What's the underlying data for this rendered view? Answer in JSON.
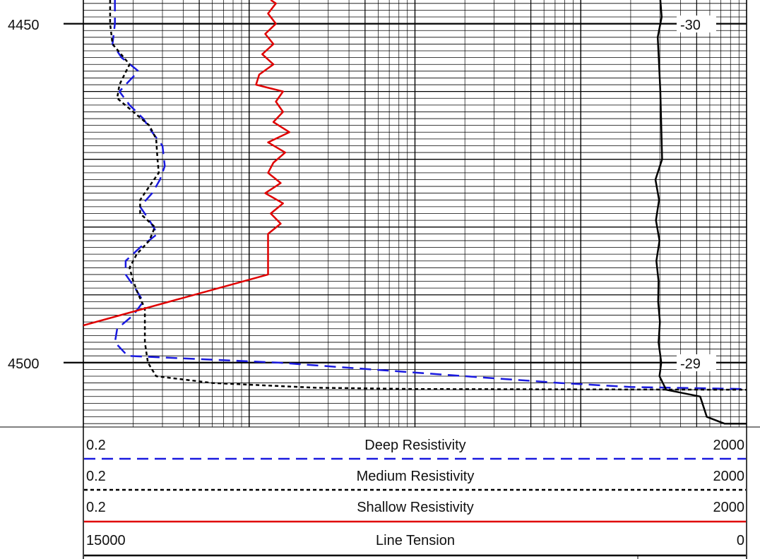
{
  "chart_data": {
    "type": "line",
    "title": "",
    "depth_axis": {
      "labels": [
        "4450",
        "4500"
      ],
      "range_visible": [
        4446.5,
        4509.5
      ]
    },
    "grid": {
      "x_scale": "log",
      "decades": 4
    },
    "tension_marks": [
      "-30",
      "-29"
    ],
    "series": [
      {
        "name": "Deep Resistivity",
        "scale": {
          "left": "0.2",
          "right": "2000",
          "log": true
        },
        "color": "#1a1adf",
        "style": "long-dash",
        "points": [
          [
            0.31,
            4446.5
          ],
          [
            0.31,
            4450
          ],
          [
            0.3,
            4453
          ],
          [
            0.34,
            4455
          ],
          [
            0.43,
            4457
          ],
          [
            0.36,
            4459
          ],
          [
            0.33,
            4460
          ],
          [
            0.38,
            4462
          ],
          [
            0.46,
            4464
          ],
          [
            0.52,
            4466
          ],
          [
            0.6,
            4468
          ],
          [
            0.62,
            4471
          ],
          [
            0.58,
            4473
          ],
          [
            0.52,
            4475
          ],
          [
            0.44,
            4477
          ],
          [
            0.5,
            4479
          ],
          [
            0.56,
            4481
          ],
          [
            0.44,
            4483
          ],
          [
            0.36,
            4485
          ],
          [
            0.36,
            4487
          ],
          [
            0.41,
            4489
          ],
          [
            0.46,
            4491
          ],
          [
            0.4,
            4493
          ],
          [
            0.32,
            4495
          ],
          [
            0.31,
            4497
          ],
          [
            0.37,
            4499
          ],
          [
            3,
            4500
          ],
          [
            40,
            4502
          ],
          [
            150,
            4503
          ],
          [
            400,
            4503.6
          ],
          [
            2000,
            4503.9
          ]
        ]
      },
      {
        "name": "Medium Resistivity",
        "scale": {
          "left": "0.2",
          "right": "2000",
          "log": true
        },
        "color": "#000000",
        "style": "short-dash",
        "points": [
          [
            0.29,
            4446.5
          ],
          [
            0.29,
            4450
          ],
          [
            0.3,
            4453
          ],
          [
            0.38,
            4456
          ],
          [
            0.33,
            4459
          ],
          [
            0.32,
            4461
          ],
          [
            0.4,
            4463
          ],
          [
            0.5,
            4465
          ],
          [
            0.55,
            4467
          ],
          [
            0.56,
            4470
          ],
          [
            0.57,
            4472
          ],
          [
            0.5,
            4474
          ],
          [
            0.44,
            4476
          ],
          [
            0.44,
            4478
          ],
          [
            0.54,
            4480
          ],
          [
            0.5,
            4482
          ],
          [
            0.42,
            4484
          ],
          [
            0.38,
            4486
          ],
          [
            0.4,
            4488
          ],
          [
            0.43,
            4490
          ],
          [
            0.47,
            4492
          ],
          [
            0.47,
            4494
          ],
          [
            0.47,
            4497
          ],
          [
            0.49,
            4500
          ],
          [
            0.55,
            4502
          ],
          [
            1.2,
            4503
          ],
          [
            5,
            4503.7
          ],
          [
            20,
            4503.9
          ],
          [
            2000,
            4504
          ]
        ]
      },
      {
        "name": "Shallow Resistivity",
        "scale": {
          "left": "0.2",
          "right": "2000",
          "log": true
        },
        "color": "#e00000",
        "style": "solid",
        "points": [
          [
            2.7,
            4446.5
          ],
          [
            2.9,
            4447
          ],
          [
            2.6,
            4448.5
          ],
          [
            2.9,
            4450
          ],
          [
            2.5,
            4451.5
          ],
          [
            2.8,
            4453
          ],
          [
            2.4,
            4454.5
          ],
          [
            2.8,
            4456
          ],
          [
            2.3,
            4457.5
          ],
          [
            2.2,
            4459
          ],
          [
            3.2,
            4460
          ],
          [
            2.9,
            4461.5
          ],
          [
            3.2,
            4463
          ],
          [
            2.8,
            4464.5
          ],
          [
            3.5,
            4466
          ],
          [
            2.6,
            4467.5
          ],
          [
            3.3,
            4469
          ],
          [
            2.8,
            4470.5
          ],
          [
            2.6,
            4472
          ],
          [
            3.1,
            4473.5
          ],
          [
            2.5,
            4475
          ],
          [
            3.2,
            4476.5
          ],
          [
            2.7,
            4478
          ],
          [
            3.1,
            4479.5
          ],
          [
            2.6,
            4481
          ],
          [
            2.6,
            4484
          ],
          [
            2.6,
            4487
          ],
          [
            0.2,
            4494.5
          ]
        ]
      },
      {
        "name": "Line Tension",
        "scale": {
          "left": "15000",
          "right": "0",
          "log": false
        },
        "color": "#000000",
        "style": "solid",
        "points": [
          [
            1950,
            4446.5
          ],
          [
            1920,
            4449
          ],
          [
            2010,
            4452
          ],
          [
            1980,
            4456
          ],
          [
            1950,
            4460
          ],
          [
            1930,
            4465
          ],
          [
            1910,
            4470
          ],
          [
            2060,
            4473
          ],
          [
            1980,
            4476
          ],
          [
            2050,
            4479
          ],
          [
            1970,
            4482
          ],
          [
            2040,
            4485
          ],
          [
            1990,
            4488
          ],
          [
            2000,
            4491
          ],
          [
            1960,
            4494
          ],
          [
            1990,
            4497
          ],
          [
            1930,
            4500
          ],
          [
            1970,
            4502
          ],
          [
            1820,
            4504
          ],
          [
            1050,
            4505
          ],
          [
            900,
            4508
          ],
          [
            500,
            4509
          ],
          [
            0,
            4509
          ]
        ]
      }
    ]
  },
  "header": {
    "rows": [
      {
        "left": "0.2",
        "name": "Deep Resistivity",
        "right": "2000"
      },
      {
        "left": "0.2",
        "name": "Medium Resistivity",
        "right": "2000"
      },
      {
        "left": "0.2",
        "name": "Shallow Resistivity",
        "right": "2000"
      },
      {
        "left": "15000",
        "name": "Line Tension",
        "right": "0"
      }
    ]
  }
}
